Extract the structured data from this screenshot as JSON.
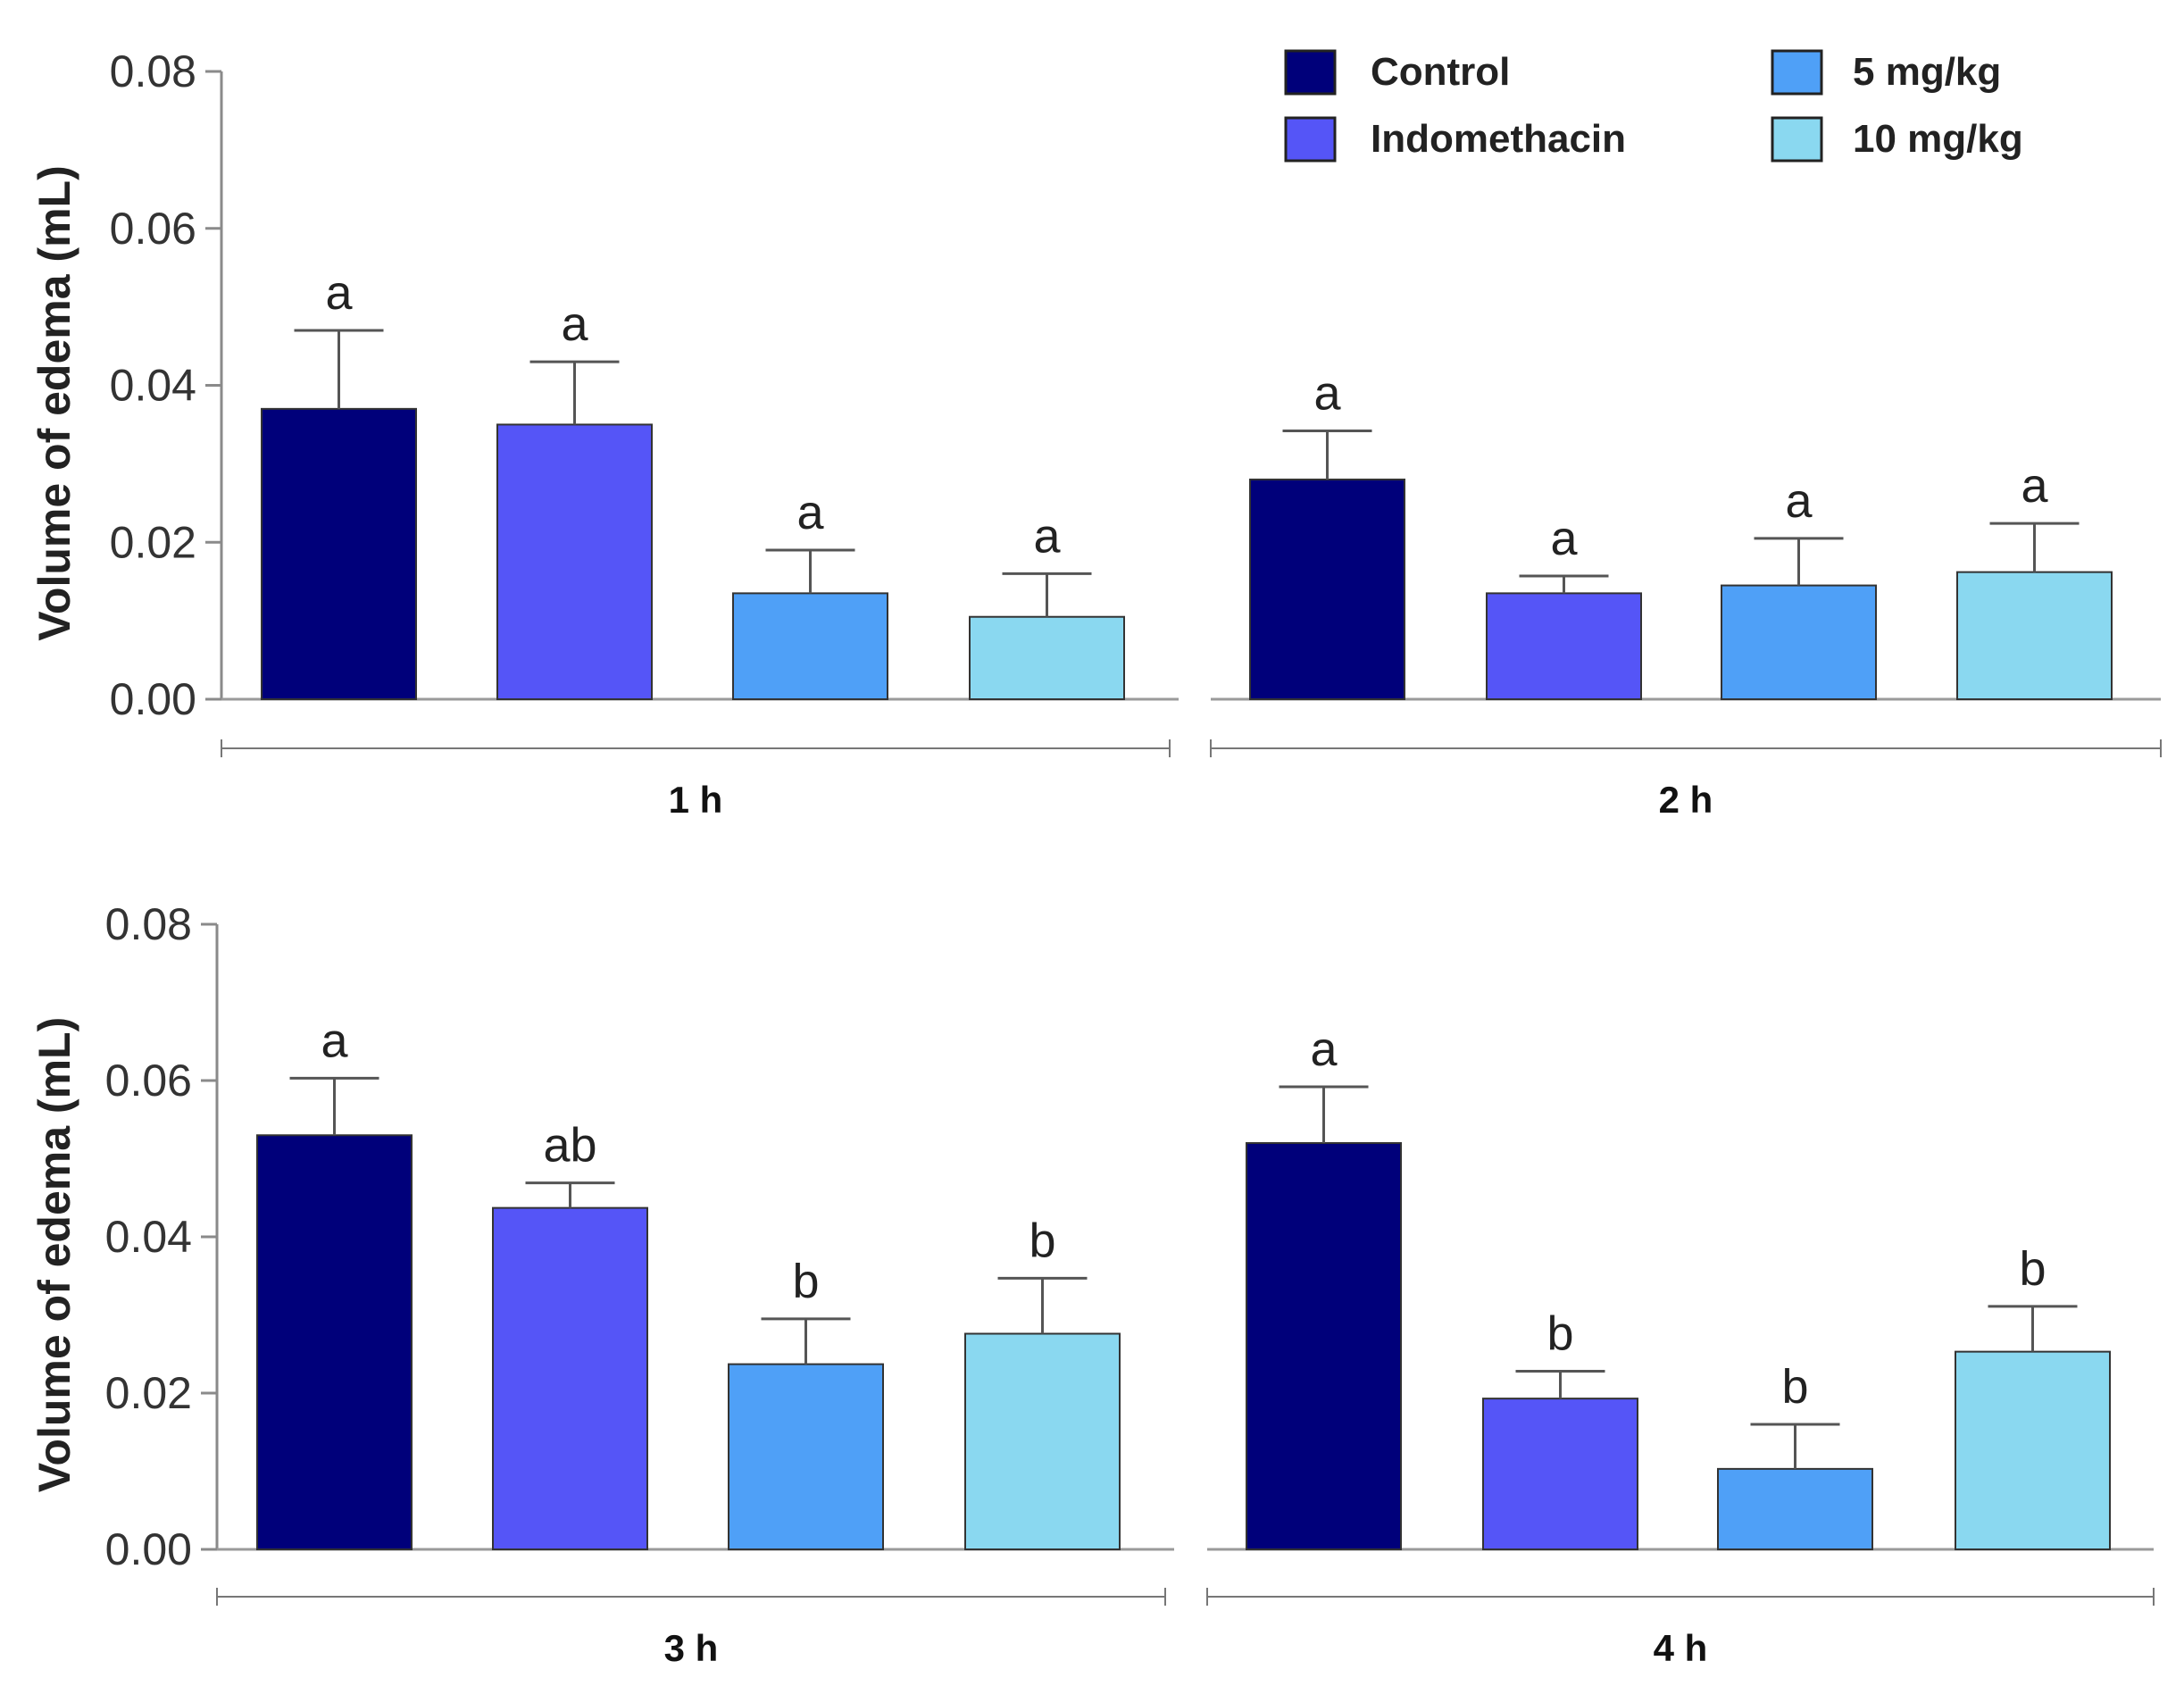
{
  "chart_data": {
    "type": "bar",
    "ylabel": "Volume of edema (mL)",
    "ylim": [
      0,
      0.08
    ],
    "yticks": [
      "0.00",
      "0.02",
      "0.04",
      "0.06",
      "0.08"
    ],
    "ytick_values": [
      0,
      0.02,
      0.04,
      0.06,
      0.08
    ],
    "legend": {
      "position": "top-right",
      "entries": [
        {
          "name": "Control",
          "color": "#00007a"
        },
        {
          "name": "Indomethacin",
          "color": "#5555f7"
        },
        {
          "name": "5 mg/kg",
          "color": "#4fa0f7"
        },
        {
          "name": "10 mg/kg",
          "color": "#8ad8f0"
        }
      ]
    },
    "series_colors": [
      "#00007a",
      "#5555f7",
      "#4fa0f7",
      "#8ad8f0"
    ],
    "groups": [
      {
        "label": "1 h",
        "values": [
          0.037,
          0.035,
          0.0135,
          0.0105
        ],
        "errors": [
          0.01,
          0.008,
          0.0055,
          0.0055
        ],
        "letters": [
          "a",
          "a",
          "a",
          "a"
        ]
      },
      {
        "label": "2 h",
        "values": [
          0.028,
          0.0135,
          0.0145,
          0.0162
        ],
        "errors": [
          0.0062,
          0.0022,
          0.006,
          0.0062
        ],
        "letters": [
          "a",
          "a",
          "a",
          "a"
        ]
      },
      {
        "label": "3 h",
        "values": [
          0.053,
          0.0437,
          0.0237,
          0.0276
        ],
        "errors": [
          0.0073,
          0.0032,
          0.0058,
          0.0071
        ],
        "letters": [
          "a",
          "ab",
          "b",
          "b"
        ]
      },
      {
        "label": "4 h",
        "values": [
          0.052,
          0.0193,
          0.0103,
          0.0253
        ],
        "errors": [
          0.0072,
          0.0035,
          0.0057,
          0.0058
        ],
        "letters": [
          "a",
          "b",
          "b",
          "b"
        ]
      }
    ]
  }
}
